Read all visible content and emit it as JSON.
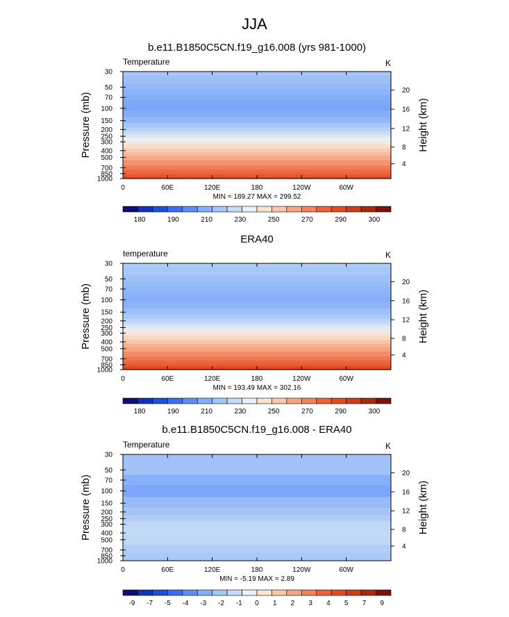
{
  "figure": {
    "title": "JJA"
  },
  "chart_data": [
    {
      "type": "heatmap",
      "title": "b.e11.B1850C5CN.f19_g16.008 (yrs 981-1000)",
      "field_label": "Temperature",
      "units": "K",
      "ylabel_left": "Pressure (mb)",
      "ylabel_right": "Height (km)",
      "x_ticks": [
        "0",
        "60E",
        "120E",
        "180",
        "120W",
        "60W"
      ],
      "x_range_deg": [
        0,
        360
      ],
      "pressure_ticks": [
        "30",
        "50",
        "70",
        "100",
        "150",
        "200",
        "250",
        "300",
        "400",
        "500",
        "700",
        "850",
        "1000"
      ],
      "height_ticks": [
        "20",
        "16",
        "12",
        "8",
        "4"
      ],
      "stats": "MIN = 189.27  MAX = 299.52",
      "colorbar_labels": [
        "180",
        "190",
        "210",
        "230",
        "250",
        "270",
        "290",
        "300"
      ],
      "colorbar_colors": [
        "#0d0e7a",
        "#1232b8",
        "#1f4fe0",
        "#3b6ef5",
        "#5b8ef7",
        "#85aef8",
        "#a6c6f7",
        "#c6dcf6",
        "#e9f0f7",
        "#fbe3d2",
        "#f9c7ab",
        "#f6a582",
        "#f2835e",
        "#ec6239",
        "#e34b1f",
        "#cd3d18",
        "#a52a0e",
        "#7a1208"
      ],
      "levels": [
        {
          "p": 30,
          "value": 214
        },
        {
          "p": 40,
          "value": 211
        },
        {
          "p": 50,
          "value": 208
        },
        {
          "p": 60,
          "value": 205
        },
        {
          "p": 70,
          "value": 203
        },
        {
          "p": 85,
          "value": 201
        },
        {
          "p": 100,
          "value": 200
        },
        {
          "p": 120,
          "value": 203
        },
        {
          "p": 150,
          "value": 208
        },
        {
          "p": 175,
          "value": 214
        },
        {
          "p": 200,
          "value": 219
        },
        {
          "p": 225,
          "value": 225
        },
        {
          "p": 250,
          "value": 230
        },
        {
          "p": 275,
          "value": 235
        },
        {
          "p": 300,
          "value": 240
        },
        {
          "p": 350,
          "value": 248
        },
        {
          "p": 400,
          "value": 254
        },
        {
          "p": 450,
          "value": 260
        },
        {
          "p": 500,
          "value": 265
        },
        {
          "p": 600,
          "value": 272
        },
        {
          "p": 700,
          "value": 279
        },
        {
          "p": 800,
          "value": 285
        },
        {
          "p": 850,
          "value": 288
        },
        {
          "p": 925,
          "value": 292
        },
        {
          "p": 1000,
          "value": 296
        }
      ]
    },
    {
      "type": "heatmap",
      "title": "ERA40",
      "field_label": "temperature",
      "units": "K",
      "ylabel_left": "Pressure (mb)",
      "ylabel_right": "Height (km)",
      "x_ticks": [
        "0",
        "60E",
        "120E",
        "180",
        "120W",
        "60W"
      ],
      "x_range_deg": [
        0,
        360
      ],
      "pressure_ticks": [
        "30",
        "50",
        "70",
        "100",
        "150",
        "200",
        "250",
        "300",
        "400",
        "500",
        "700",
        "850",
        "1000"
      ],
      "height_ticks": [
        "20",
        "16",
        "12",
        "8",
        "4"
      ],
      "stats": "MIN = 193.49  MAX = 302.16",
      "colorbar_labels": [
        "180",
        "190",
        "210",
        "230",
        "250",
        "270",
        "290",
        "300"
      ],
      "colorbar_colors": [
        "#0d0e7a",
        "#1232b8",
        "#1f4fe0",
        "#3b6ef5",
        "#5b8ef7",
        "#85aef8",
        "#a6c6f7",
        "#c6dcf6",
        "#e9f0f7",
        "#fbe3d2",
        "#f9c7ab",
        "#f6a582",
        "#f2835e",
        "#ec6239",
        "#e34b1f",
        "#cd3d18",
        "#a52a0e",
        "#7a1208"
      ],
      "levels": [
        {
          "p": 30,
          "value": 217
        },
        {
          "p": 40,
          "value": 214
        },
        {
          "p": 50,
          "value": 211
        },
        {
          "p": 60,
          "value": 209
        },
        {
          "p": 70,
          "value": 207
        },
        {
          "p": 85,
          "value": 205
        },
        {
          "p": 100,
          "value": 204
        },
        {
          "p": 120,
          "value": 206
        },
        {
          "p": 150,
          "value": 211
        },
        {
          "p": 175,
          "value": 216
        },
        {
          "p": 200,
          "value": 221
        },
        {
          "p": 225,
          "value": 227
        },
        {
          "p": 250,
          "value": 232
        },
        {
          "p": 275,
          "value": 237
        },
        {
          "p": 300,
          "value": 242
        },
        {
          "p": 350,
          "value": 250
        },
        {
          "p": 400,
          "value": 256
        },
        {
          "p": 450,
          "value": 262
        },
        {
          "p": 500,
          "value": 267
        },
        {
          "p": 600,
          "value": 274
        },
        {
          "p": 700,
          "value": 281
        },
        {
          "p": 800,
          "value": 287
        },
        {
          "p": 850,
          "value": 290
        },
        {
          "p": 925,
          "value": 294
        },
        {
          "p": 1000,
          "value": 298
        }
      ]
    },
    {
      "type": "heatmap",
      "title": "b.e11.B1850C5CN.f19_g16.008 - ERA40",
      "field_label": "Temperature",
      "units": "K",
      "ylabel_left": "Pressure (mb)",
      "ylabel_right": "Height (km)",
      "x_ticks": [
        "0",
        "60E",
        "120E",
        "180",
        "120W",
        "60W"
      ],
      "x_range_deg": [
        0,
        360
      ],
      "pressure_ticks": [
        "30",
        "50",
        "70",
        "100",
        "150",
        "200",
        "250",
        "300",
        "400",
        "500",
        "700",
        "850",
        "1000"
      ],
      "height_ticks": [
        "20",
        "16",
        "12",
        "8",
        "4"
      ],
      "stats": "MIN =  -5.19  MAX =   2.89",
      "colorbar_labels": [
        "-9",
        "-7",
        "-5",
        "-4",
        "-3",
        "-2",
        "-1",
        "0",
        "1",
        "2",
        "3",
        "4",
        "5",
        "7",
        "9"
      ],
      "colorbar_colors": [
        "#0d0e7a",
        "#1232b8",
        "#1f4fe0",
        "#3b6ef5",
        "#5b8ef7",
        "#85aef8",
        "#a6c6f7",
        "#c6dcf6",
        "#e9f0f7",
        "#fbe3d2",
        "#f9c7ab",
        "#f6a582",
        "#f2835e",
        "#ec6239",
        "#e34b1f",
        "#cd3d18",
        "#a52a0e",
        "#7a1208"
      ],
      "levels": [
        {
          "p": 30,
          "value": -2.5
        },
        {
          "p": 50,
          "value": -2.5
        },
        {
          "p": 70,
          "value": -3.2
        },
        {
          "p": 100,
          "value": -3.5
        },
        {
          "p": 150,
          "value": -2.8
        },
        {
          "p": 200,
          "value": -2.4
        },
        {
          "p": 250,
          "value": -2.0
        },
        {
          "p": 300,
          "value": -1.6
        },
        {
          "p": 400,
          "value": -1.5
        },
        {
          "p": 500,
          "value": -1.6
        },
        {
          "p": 700,
          "value": -2.0
        },
        {
          "p": 850,
          "value": -2.2
        },
        {
          "p": 1000,
          "value": -2.3
        }
      ]
    }
  ]
}
